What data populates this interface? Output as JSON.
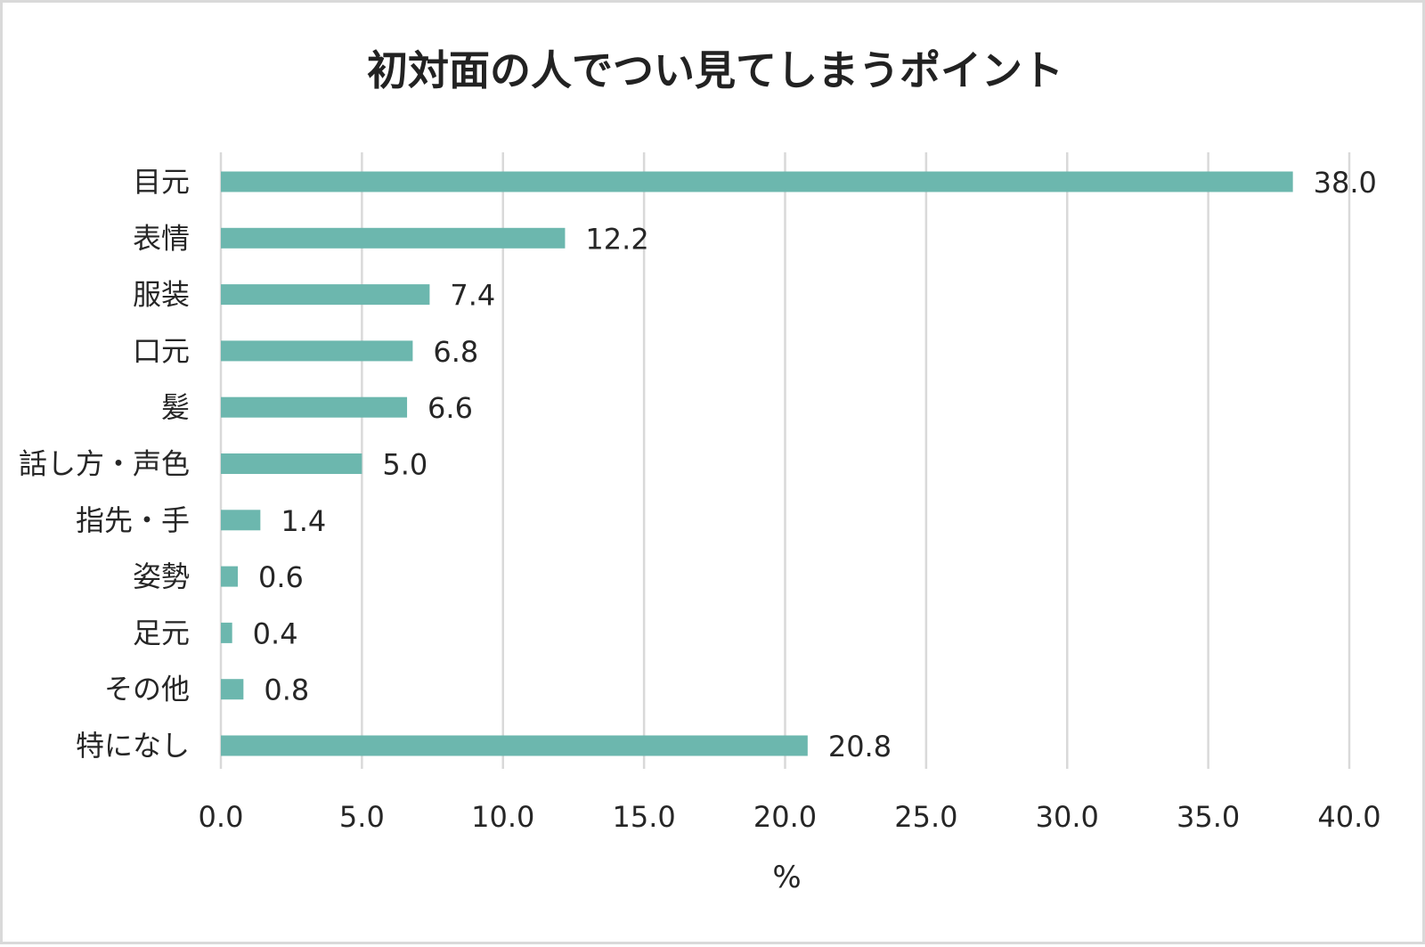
{
  "chart_data": {
    "type": "bar",
    "orientation": "horizontal",
    "title": "初対面の人でつい見てしまうポイント",
    "categories": [
      "目元",
      "表情",
      "服装",
      "口元",
      "髪",
      "話し方・声色",
      "指先・手",
      "姿勢",
      "足元",
      "その他",
      "特になし"
    ],
    "values": [
      38.0,
      12.2,
      7.4,
      6.8,
      6.6,
      5.0,
      1.4,
      0.6,
      0.4,
      0.8,
      20.8
    ],
    "value_labels": [
      "38.0",
      "12.2",
      "7.4",
      "6.8",
      "6.6",
      "5.0",
      "1.4",
      "0.6",
      "0.4",
      "0.8",
      "20.8"
    ],
    "xlabel": "%",
    "ylabel": "",
    "xlim": [
      0,
      40
    ],
    "x_ticks": [
      "0.0",
      "5.0",
      "10.0",
      "15.0",
      "20.0",
      "25.0",
      "30.0",
      "35.0",
      "40.0"
    ],
    "grid": "vertical",
    "bar_color": "#6cb7ae",
    "grid_color": "#d9d9d9"
  }
}
